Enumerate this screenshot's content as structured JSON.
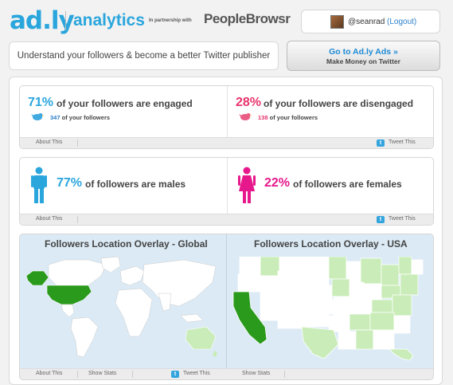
{
  "header": {
    "logo_text": "ad.ly",
    "product_name": "analytics",
    "partner_text": "In partnership with",
    "partner_name": "PeopleBrowsr",
    "username": "@seanrad",
    "logout_label": "(Logout)"
  },
  "tagline": "Understand your followers & become a better Twitter publisher",
  "cta": {
    "line1": "Go to Ad.ly Ads »",
    "line2": "Make Money on Twitter"
  },
  "engagement": {
    "engaged": {
      "pct": "71%",
      "text": "of your followers are engaged",
      "count": "347",
      "count_text": "of your followers"
    },
    "disengaged": {
      "pct": "28%",
      "text": "of your followers are disengaged",
      "count": "138",
      "count_text": "of your followers"
    },
    "about_label": "About This",
    "tweet_label": "Tweet This"
  },
  "gender": {
    "male": {
      "pct": "77%",
      "text": "of followers are males"
    },
    "female": {
      "pct": "22%",
      "text": "of followers are females"
    },
    "about_label": "About This",
    "tweet_label": "Tweet This"
  },
  "maps": {
    "global_title": "Followers Location Overlay - Global",
    "usa_title": "Followers Location Overlay - USA",
    "about_label": "About This",
    "show_stats_label": "Show Stats",
    "tweet_label": "Tweet This",
    "usa_show_stats_label": "Show Stats"
  },
  "colors": {
    "accent_blue": "#2aa6dd",
    "disengaged_pink": "#e8336c",
    "female_pink": "#e6188c",
    "map_dark_green": "#2a9a1c",
    "map_light_green": "#c9ecb8"
  }
}
